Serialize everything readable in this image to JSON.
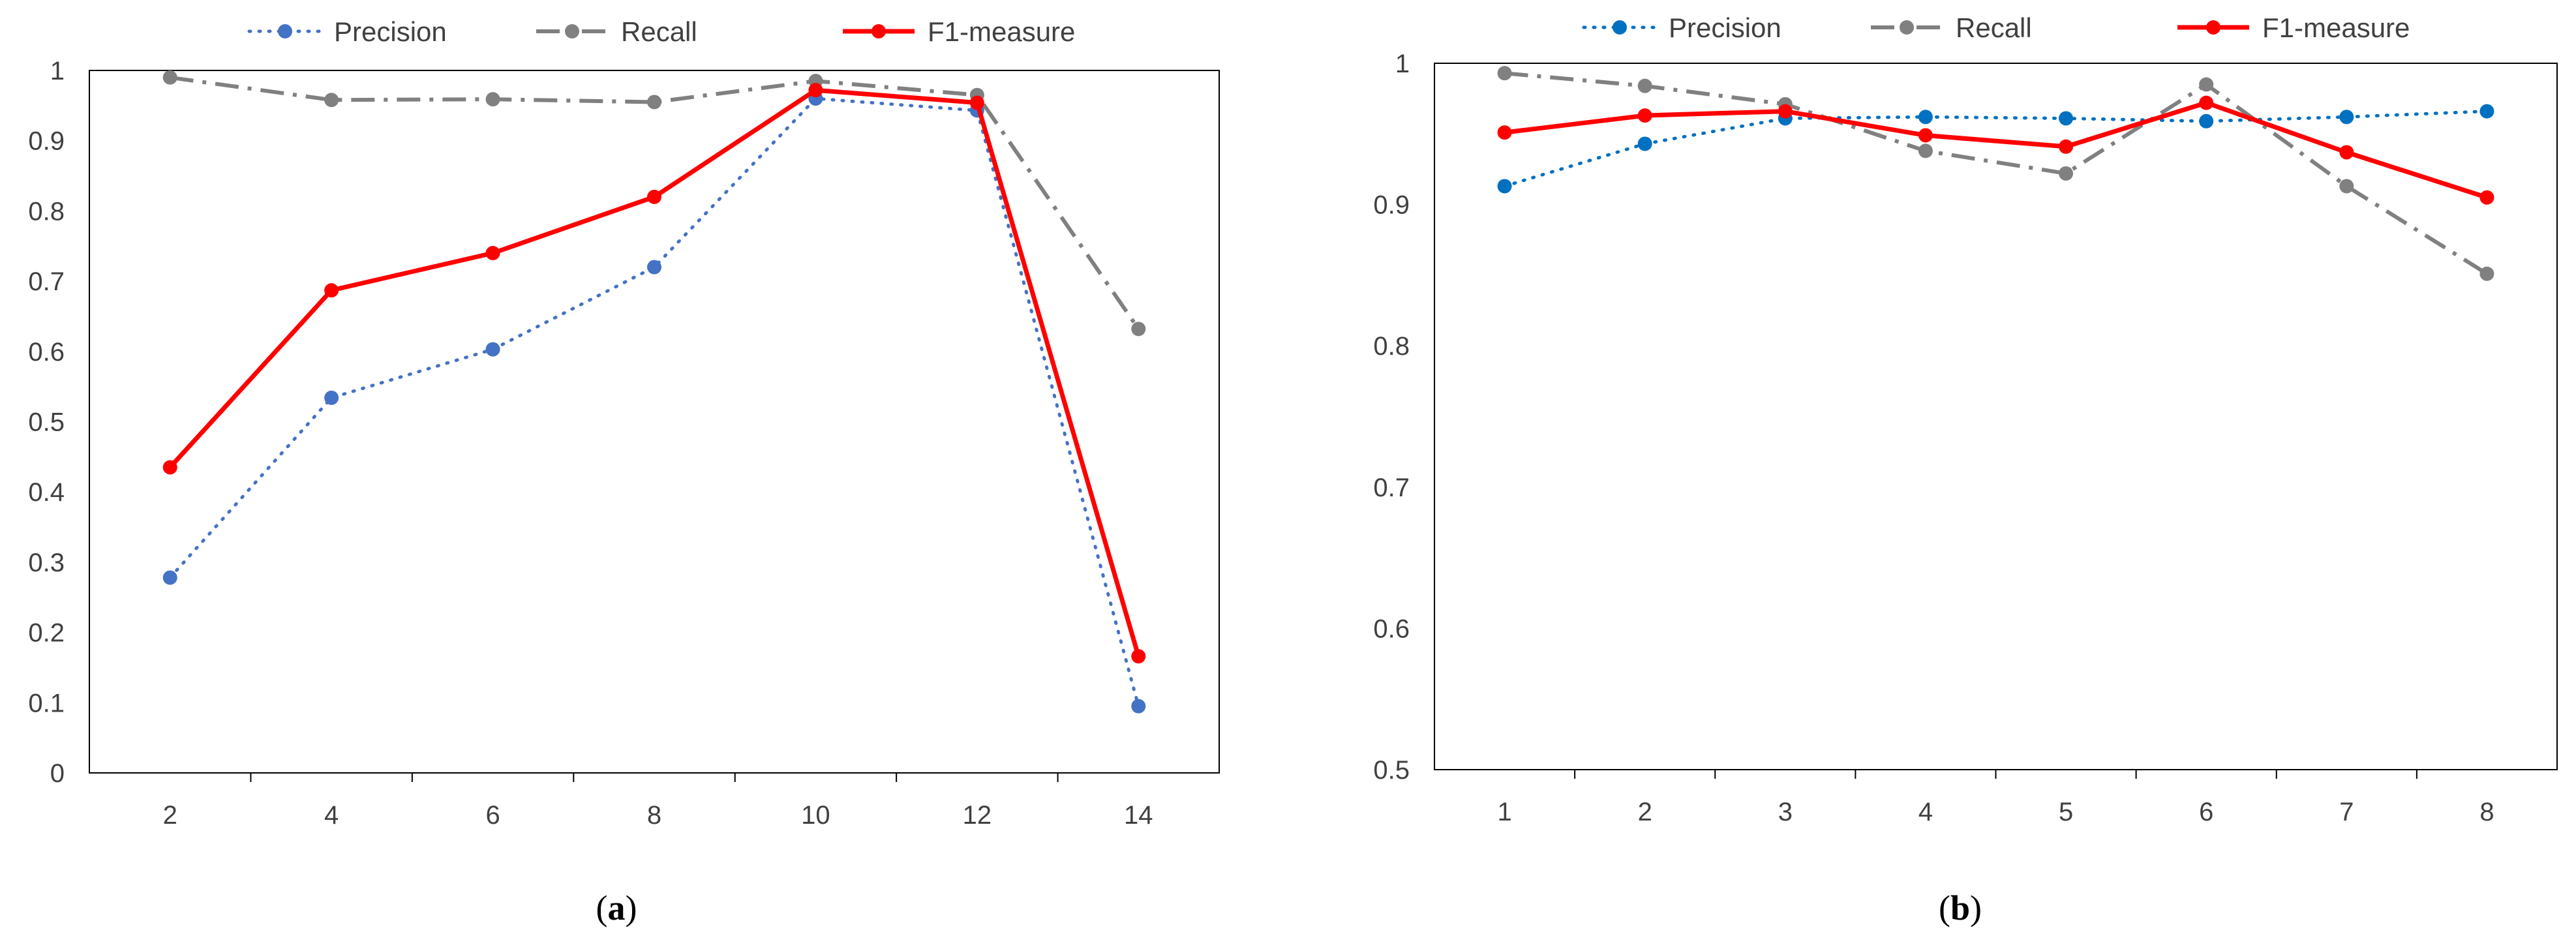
{
  "colors": {
    "precision_a": "#4472C4",
    "precision_b": "#0070C0",
    "recall": "#808080",
    "f1": "#FF0000",
    "axis": "#000000",
    "text": "#404040"
  },
  "chart_data": [
    {
      "type": "line",
      "panel_label": "a",
      "caption_open": "(",
      "caption_close": ")",
      "x": [
        2,
        4,
        6,
        8,
        10,
        12,
        14
      ],
      "x_tick_labels": [
        "2",
        "4",
        "6",
        "8",
        "10",
        "12",
        "14"
      ],
      "ylim": [
        0,
        1
      ],
      "y_ticks": [
        0,
        0.1,
        0.2,
        0.3,
        0.4,
        0.5,
        0.6,
        0.7,
        0.8,
        0.9,
        1
      ],
      "y_tick_labels": [
        "0",
        "0.1",
        "0.2",
        "0.3",
        "0.4",
        "0.5",
        "0.6",
        "0.7",
        "0.8",
        "0.9",
        "1"
      ],
      "grid": false,
      "legend_position": "top-center",
      "series": [
        {
          "name": "Precision",
          "style": "dotted",
          "values": [
            0.278,
            0.534,
            0.603,
            0.72,
            0.96,
            0.943,
            0.095
          ]
        },
        {
          "name": "Recall",
          "style": "dash-dot",
          "values": [
            0.99,
            0.958,
            0.959,
            0.955,
            0.985,
            0.965,
            0.632
          ]
        },
        {
          "name": "F1-measure",
          "style": "solid",
          "values": [
            0.435,
            0.687,
            0.74,
            0.82,
            0.972,
            0.954,
            0.166
          ]
        }
      ]
    },
    {
      "type": "line",
      "panel_label": "b",
      "caption_open": "(",
      "caption_close": ")",
      "x": [
        1,
        2,
        3,
        4,
        5,
        6,
        7,
        8
      ],
      "x_tick_labels": [
        "1",
        "2",
        "3",
        "4",
        "5",
        "6",
        "7",
        "8"
      ],
      "ylim": [
        0.5,
        1
      ],
      "y_ticks": [
        0.5,
        0.6,
        0.7,
        0.8,
        0.9,
        1
      ],
      "y_tick_labels": [
        "0.5",
        "0.6",
        "0.7",
        "0.8",
        "0.9",
        "1"
      ],
      "grid": false,
      "legend_position": "top-center",
      "series": [
        {
          "name": "Precision",
          "style": "dotted",
          "values": [
            0.913,
            0.943,
            0.961,
            0.962,
            0.961,
            0.959,
            0.962,
            0.966
          ]
        },
        {
          "name": "Recall",
          "style": "dash-dot",
          "values": [
            0.993,
            0.984,
            0.971,
            0.938,
            0.922,
            0.985,
            0.913,
            0.851
          ]
        },
        {
          "name": "F1-measure",
          "style": "solid",
          "values": [
            0.951,
            0.963,
            0.966,
            0.949,
            0.941,
            0.972,
            0.937,
            0.905
          ]
        }
      ]
    }
  ]
}
